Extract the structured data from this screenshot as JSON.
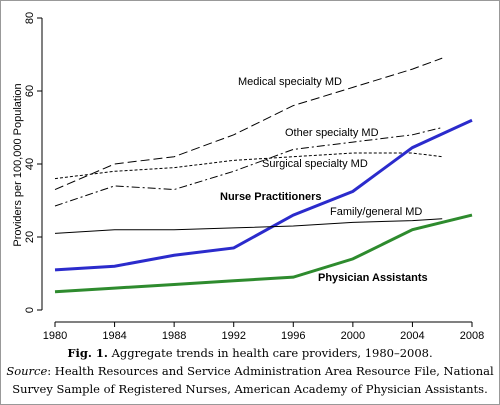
{
  "chart_data": {
    "type": "line",
    "ylabel": "Providers per 100,000 Population",
    "xlim": [
      1980,
      2008
    ],
    "xticks": [
      1980,
      1984,
      1988,
      1992,
      1996,
      2000,
      2004,
      2008
    ],
    "ylim": [
      0,
      80
    ],
    "yticks": [
      0,
      20,
      40,
      60,
      80
    ],
    "series": [
      {
        "name": "Medical specialty MD",
        "color": "#000000",
        "line_style": "longdash",
        "width": 1,
        "x": [
          1980,
          1984,
          1988,
          1992,
          1996,
          2000,
          2004,
          2006
        ],
        "values": [
          33,
          40,
          42,
          48,
          56,
          61,
          66,
          69
        ]
      },
      {
        "name": "Other specialty MD",
        "color": "#000000",
        "line_style": "dashdot",
        "width": 1,
        "x": [
          1980,
          1984,
          1988,
          1992,
          1996,
          2000,
          2004,
          2006
        ],
        "values": [
          28.5,
          34,
          33,
          38,
          44,
          46,
          48,
          50
        ]
      },
      {
        "name": "Surgical specialty MD",
        "color": "#000000",
        "line_style": "shortdash",
        "width": 1,
        "x": [
          1980,
          1984,
          1988,
          1992,
          1996,
          2000,
          2004,
          2006
        ],
        "values": [
          36,
          38,
          39,
          41,
          42,
          43,
          43,
          42
        ]
      },
      {
        "name": "Nurse Practitioners",
        "color": "#2b2bcc",
        "line_style": "solid",
        "width": 3,
        "x": [
          1980,
          1984,
          1988,
          1992,
          1996,
          2000,
          2004,
          2008
        ],
        "values": [
          11,
          12,
          15,
          17,
          26,
          32.5,
          44.5,
          52
        ]
      },
      {
        "name": "Family/general MD",
        "color": "#000000",
        "line_style": "solid",
        "width": 1,
        "x": [
          1980,
          1984,
          1988,
          1992,
          1996,
          2000,
          2004,
          2006
        ],
        "values": [
          21,
          22,
          22,
          22.5,
          23,
          24,
          24.5,
          25
        ]
      },
      {
        "name": "Physician Assistants",
        "color": "#2e8b2e",
        "line_style": "solid",
        "width": 3,
        "x": [
          1980,
          1984,
          1988,
          1992,
          1996,
          2000,
          2004,
          2008
        ],
        "values": [
          5,
          6,
          7,
          8,
          9,
          14,
          22,
          26
        ]
      }
    ]
  },
  "caption": {
    "label": "Fig. 1.",
    "text": "Aggregate trends in health care providers, 1980–2008.",
    "source_label": "Source",
    "source_text": ": Health Resources and Service Administration Area Resource File, National",
    "source_text_2": "Survey Sample of Registered Nurses, American Academy of Physician Assistants."
  }
}
